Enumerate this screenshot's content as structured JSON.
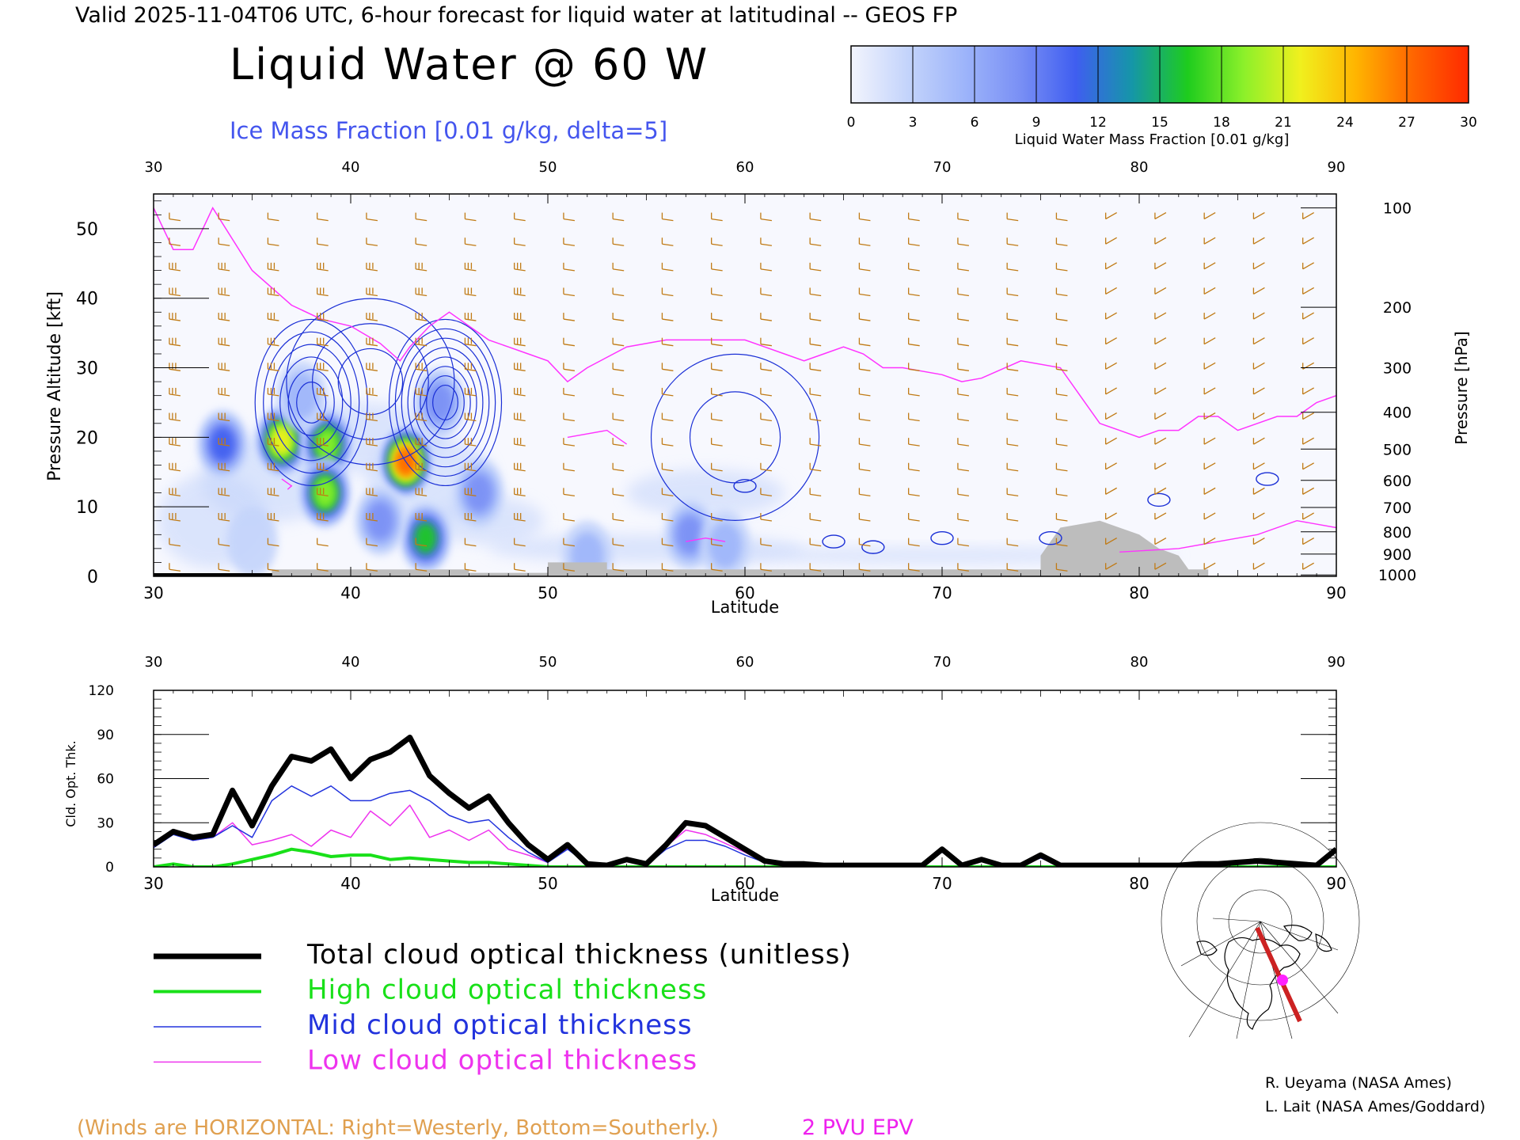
{
  "header": {
    "valid_line": "Valid 2025-11-04T06 UTC, 6-hour forecast for liquid water at latitudinal -- GEOS FP",
    "title": "Liquid Water @ 60 W",
    "subtitle": "Ice Mass Fraction [0.01 g/kg, delta=5]"
  },
  "colorbar": {
    "ticks": [
      "0",
      "3",
      "6",
      "9",
      "12",
      "15",
      "18",
      "21",
      "24",
      "27",
      "30"
    ],
    "label": "Liquid Water Mass Fraction [0.01 g/kg]",
    "colors": [
      "#f2f4fd",
      "#c4d4fb",
      "#9eb5fa",
      "#7a90f5",
      "#3f5ef0",
      "#1596a8",
      "#1ecc1e",
      "#8cf02a",
      "#f0f01e",
      "#ffb400",
      "#ff6600",
      "#ff2a00"
    ]
  },
  "colors": {
    "wind": "#c07a14",
    "epv": "#ff33ff",
    "ice": "#1a2fd6",
    "terrain": "#bdbdbd",
    "total": "#000000",
    "high": "#19e019",
    "mid": "#2233dd",
    "low": "#ee33ee",
    "wind_note": "#e0a050"
  },
  "chart_data": [
    {
      "type": "heatmap",
      "title": "Liquid Water @ 60 W",
      "xlabel": "Latitude",
      "ylabel": "Pressure Altitude [kft]",
      "ylabel_right": "Pressure [hPa]",
      "xlim": [
        30,
        90
      ],
      "ylim": [
        0,
        55
      ],
      "x_ticks": [
        "30",
        "40",
        "50",
        "60",
        "70",
        "80",
        "90"
      ],
      "y_ticks": [
        "0",
        "10",
        "20",
        "30",
        "40",
        "50"
      ],
      "pressure_ticks": [
        {
          "label": "100",
          "kft": 53
        },
        {
          "label": "200",
          "kft": 38.7
        },
        {
          "label": "300",
          "kft": 30
        },
        {
          "label": "400",
          "kft": 23.6
        },
        {
          "label": "500",
          "kft": 18.3
        },
        {
          "label": "600",
          "kft": 13.8
        },
        {
          "label": "700",
          "kft": 9.9
        },
        {
          "label": "800",
          "kft": 6.4
        },
        {
          "label": "900",
          "kft": 3.2
        },
        {
          "label": "1000",
          "kft": 0.2
        }
      ],
      "liquid_water_blobs": [
        {
          "lat": 33.5,
          "kft": 19,
          "value": 12
        },
        {
          "lat": 36.5,
          "kft": 19.5,
          "value": 21
        },
        {
          "lat": 38.8,
          "kft": 19,
          "value": 20
        },
        {
          "lat": 38.7,
          "kft": 12,
          "value": 18
        },
        {
          "lat": 42.8,
          "kft": 16.5,
          "value": 27
        },
        {
          "lat": 43.8,
          "kft": 5.5,
          "value": 15
        },
        {
          "lat": 37.5,
          "kft": 26,
          "value": 8
        },
        {
          "lat": 44.5,
          "kft": 25,
          "value": 9
        },
        {
          "lat": 46.5,
          "kft": 12,
          "value": 9
        },
        {
          "lat": 41.5,
          "kft": 8,
          "value": 10
        },
        {
          "lat": 57.2,
          "kft": 6,
          "value": 10
        },
        {
          "lat": 59,
          "kft": 4.5,
          "value": 6
        },
        {
          "lat": 52,
          "kft": 3,
          "value": 7
        },
        {
          "lat": 35,
          "kft": 5,
          "value": 5
        }
      ],
      "ice_contour_centers": [
        {
          "lat": 38,
          "kft": 25,
          "value": 30
        },
        {
          "lat": 44.8,
          "kft": 25,
          "value": 40
        },
        {
          "lat": 41,
          "kft": 28,
          "value": 15
        },
        {
          "lat": 59.5,
          "kft": 20,
          "value": 10
        }
      ],
      "epv_2pvu_line": [
        [
          30,
          53
        ],
        [
          30.5,
          50
        ],
        [
          31,
          47
        ],
        [
          32,
          47
        ],
        [
          33,
          53
        ],
        [
          35,
          44
        ],
        [
          37,
          39
        ],
        [
          38.5,
          37
        ],
        [
          40,
          36
        ],
        [
          41.5,
          33.5
        ],
        [
          42.5,
          31
        ],
        [
          43,
          33
        ],
        [
          44,
          36
        ],
        [
          45,
          38
        ],
        [
          46,
          36
        ],
        [
          47,
          34
        ],
        [
          48,
          33
        ],
        [
          49,
          32
        ],
        [
          50,
          31
        ],
        [
          51,
          28
        ],
        [
          52,
          30
        ],
        [
          54,
          33
        ],
        [
          56,
          34
        ],
        [
          58,
          34
        ],
        [
          60,
          34
        ],
        [
          61,
          33
        ],
        [
          62,
          32
        ],
        [
          63,
          31
        ],
        [
          64,
          32
        ],
        [
          65,
          33
        ],
        [
          66,
          32
        ],
        [
          67,
          30
        ],
        [
          68,
          30
        ],
        [
          70,
          29
        ],
        [
          71,
          28
        ],
        [
          72,
          28.5
        ],
        [
          74,
          31
        ],
        [
          76,
          30
        ],
        [
          77,
          26
        ],
        [
          78,
          22
        ],
        [
          79,
          21
        ],
        [
          80,
          20
        ],
        [
          81,
          21
        ],
        [
          82,
          21
        ],
        [
          83,
          23
        ],
        [
          84,
          23
        ],
        [
          85,
          21
        ],
        [
          86,
          22
        ],
        [
          87,
          23
        ],
        [
          88,
          23
        ],
        [
          89,
          25
        ],
        [
          90,
          26
        ]
      ],
      "terrain_kft": [
        [
          30,
          0
        ],
        [
          36,
          0
        ],
        [
          36,
          1
        ],
        [
          46,
          1
        ],
        [
          46,
          0.5
        ],
        [
          50,
          0.5
        ],
        [
          50,
          2
        ],
        [
          53,
          2
        ],
        [
          53,
          1
        ],
        [
          75,
          1
        ],
        [
          75,
          3
        ],
        [
          76,
          7
        ],
        [
          77,
          7.5
        ],
        [
          78,
          8
        ],
        [
          79,
          7
        ],
        [
          80,
          6
        ],
        [
          80.5,
          5
        ],
        [
          81,
          4
        ],
        [
          82,
          3
        ],
        [
          82.5,
          1
        ],
        [
          83.5,
          1
        ],
        [
          83.5,
          0
        ],
        [
          90,
          0
        ]
      ],
      "wind_note": "(Winds are HORIZONTAL: Right=Westerly, Bottom=Southerly.)",
      "epv_label": "2 PVU EPV"
    },
    {
      "type": "line",
      "xlabel": "Latitude",
      "ylabel": "Cld. Opt. Thk.",
      "xlim": [
        30,
        90
      ],
      "ylim": [
        0,
        120
      ],
      "x_ticks": [
        "30",
        "40",
        "50",
        "60",
        "70",
        "80",
        "90"
      ],
      "y_ticks": [
        "0",
        "30",
        "60",
        "90",
        "120"
      ],
      "x": [
        30,
        31,
        32,
        33,
        34,
        35,
        36,
        37,
        38,
        39,
        40,
        41,
        42,
        43,
        44,
        45,
        46,
        47,
        48,
        49,
        50,
        51,
        52,
        53,
        54,
        55,
        56,
        57,
        58,
        59,
        60,
        61,
        62,
        63,
        64,
        65,
        66,
        67,
        68,
        69,
        70,
        71,
        72,
        73,
        74,
        75,
        76,
        77,
        78,
        79,
        80,
        81,
        82,
        83,
        84,
        85,
        86,
        87,
        88,
        89,
        90
      ],
      "series": [
        {
          "name": "Total cloud optical thickness (unitless)",
          "key": "total",
          "values": [
            15,
            24,
            20,
            22,
            52,
            28,
            55,
            75,
            72,
            80,
            60,
            73,
            78,
            88,
            62,
            50,
            40,
            48,
            30,
            15,
            5,
            15,
            2,
            1,
            5,
            2,
            15,
            30,
            28,
            20,
            12,
            4,
            2,
            2,
            1,
            1,
            1,
            1,
            1,
            1,
            12,
            1,
            5,
            1,
            1,
            8,
            1,
            1,
            1,
            1,
            1,
            1,
            1,
            2,
            2,
            3,
            4,
            3,
            2,
            1,
            12
          ]
        },
        {
          "name": "High cloud optical thickness",
          "key": "high",
          "values": [
            0,
            2,
            0,
            0,
            2,
            5,
            8,
            12,
            10,
            7,
            8,
            8,
            5,
            6,
            5,
            4,
            3,
            3,
            2,
            1,
            0,
            0,
            0,
            0,
            0,
            0,
            0,
            0,
            0,
            0,
            0,
            0,
            0,
            0,
            0,
            0,
            0,
            0,
            0,
            0,
            0,
            0,
            0,
            0,
            0,
            0,
            0,
            0,
            0,
            0,
            0,
            0,
            0,
            0,
            0,
            0,
            0,
            0,
            0,
            0,
            0
          ]
        },
        {
          "name": "Mid cloud optical thickness",
          "key": "mid",
          "values": [
            13,
            22,
            18,
            20,
            28,
            20,
            45,
            55,
            48,
            55,
            45,
            45,
            50,
            52,
            45,
            35,
            30,
            32,
            20,
            10,
            3,
            12,
            2,
            1,
            4,
            1,
            12,
            18,
            18,
            14,
            8,
            3,
            2,
            1,
            1,
            1,
            1,
            1,
            1,
            1,
            10,
            1,
            4,
            1,
            1,
            6,
            1,
            1,
            1,
            1,
            1,
            1,
            1,
            2,
            2,
            3,
            3,
            2,
            2,
            1,
            10
          ]
        },
        {
          "name": "Low cloud optical thickness",
          "key": "low",
          "values": [
            14,
            23,
            18,
            20,
            30,
            15,
            18,
            22,
            14,
            25,
            20,
            38,
            28,
            42,
            20,
            25,
            18,
            25,
            12,
            8,
            3,
            13,
            2,
            1,
            4,
            2,
            14,
            25,
            22,
            16,
            10,
            3,
            2,
            2,
            1,
            1,
            1,
            1,
            1,
            1,
            11,
            1,
            5,
            1,
            1,
            7,
            1,
            1,
            1,
            1,
            1,
            1,
            1,
            2,
            2,
            3,
            3,
            3,
            2,
            1,
            11
          ]
        }
      ]
    }
  ],
  "legend": [
    {
      "label": "Total cloud optical thickness (unitless)",
      "key": "total"
    },
    {
      "label": "High cloud optical thickness",
      "key": "high"
    },
    {
      "label": "Mid cloud optical thickness",
      "key": "mid"
    },
    {
      "label": "Low cloud optical thickness",
      "key": "low"
    }
  ],
  "credits": {
    "line1": "R. Ueyama (NASA Ames)",
    "line2": "L. Lait (NASA Ames/Goddard)"
  }
}
